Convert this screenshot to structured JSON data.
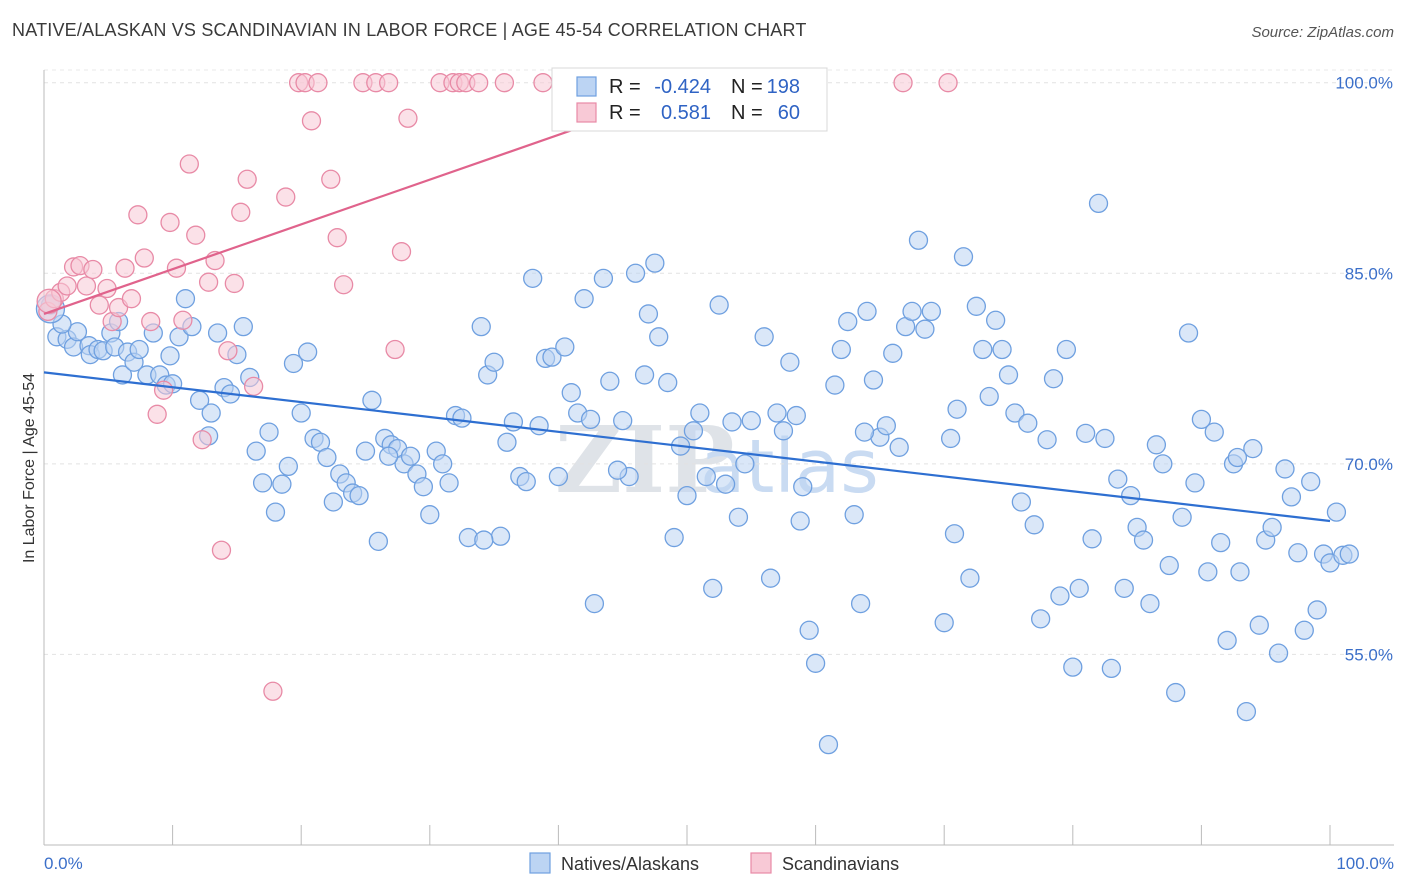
{
  "title": "NATIVE/ALASKAN VS SCANDINAVIAN IN LABOR FORCE | AGE 45-54 CORRELATION CHART",
  "source": "Source: ZipAtlas.com",
  "watermark": {
    "zip": "ZIP",
    "atlas": "atlas"
  },
  "legend_box": {
    "rows": [
      {
        "r_label": "R =",
        "r_value": "-0.424",
        "n_label": "N =",
        "n_value": "198",
        "color": "#a9c8f0"
      },
      {
        "r_label": "R =",
        "r_value": "0.581",
        "n_label": "N =",
        "n_value": "60",
        "color": "#f4b8c9"
      }
    ]
  },
  "bottom_legend": [
    "Natives/Alaskans",
    "Scandinavians"
  ],
  "chart_data": {
    "type": "scatter",
    "title": "NATIVE/ALASKAN VS SCANDINAVIAN IN LABOR FORCE | AGE 45-54 CORRELATION CHART",
    "xlabel": "",
    "ylabel": "In Labor Force | Age 45-54",
    "xlim": [
      0,
      100
    ],
    "ylim": [
      40,
      101
    ],
    "x_tick_labels": [
      "0.0%",
      "100.0%"
    ],
    "y_ticks": [
      55,
      70,
      85,
      100
    ],
    "y_tick_labels": [
      "55.0%",
      "70.0%",
      "85.0%",
      "100.0%"
    ],
    "grid": true,
    "series": [
      {
        "name": "Natives/Alaskans",
        "color": "#6fa0e0",
        "fill": "#bcd4f3",
        "trend": {
          "x": [
            0,
            100
          ],
          "y": [
            77.2,
            65.5
          ],
          "color": "#2e6fd1"
        },
        "points": [
          [
            0.5,
            82.5
          ],
          [
            1.0,
            80.0
          ],
          [
            1.8,
            79.8
          ],
          [
            2.3,
            79.2
          ],
          [
            2.6,
            80.4
          ],
          [
            3.5,
            79.3
          ],
          [
            3.6,
            78.6
          ],
          [
            4.2,
            79.0
          ],
          [
            4.6,
            78.9
          ],
          [
            5.2,
            80.3
          ],
          [
            5.5,
            79.2
          ],
          [
            6.1,
            77.0
          ],
          [
            6.5,
            78.8
          ],
          [
            7.0,
            78.0
          ],
          [
            7.4,
            79.0
          ],
          [
            8.0,
            77.0
          ],
          [
            8.5,
            80.3
          ],
          [
            9.0,
            77.0
          ],
          [
            9.5,
            76.2
          ],
          [
            10.0,
            76.3
          ],
          [
            10.5,
            80.0
          ],
          [
            11.0,
            83.0
          ],
          [
            11.5,
            80.8
          ],
          [
            12.1,
            75.0
          ],
          [
            13.0,
            74.0
          ],
          [
            13.5,
            80.3
          ],
          [
            14.0,
            76.0
          ],
          [
            14.5,
            75.5
          ],
          [
            15.0,
            78.6
          ],
          [
            15.5,
            80.8
          ],
          [
            16.0,
            76.8
          ],
          [
            16.5,
            71.0
          ],
          [
            17.0,
            68.5
          ],
          [
            17.5,
            72.5
          ],
          [
            18.0,
            66.2
          ],
          [
            18.5,
            68.4
          ],
          [
            19.0,
            69.8
          ],
          [
            19.4,
            77.9
          ],
          [
            20.0,
            74.0
          ],
          [
            20.5,
            78.8
          ],
          [
            21.0,
            72.0
          ],
          [
            21.5,
            71.7
          ],
          [
            22.0,
            70.5
          ],
          [
            22.5,
            67.0
          ],
          [
            23.0,
            69.2
          ],
          [
            23.5,
            68.5
          ],
          [
            24.0,
            67.7
          ],
          [
            24.5,
            67.5
          ],
          [
            25.0,
            71.0
          ],
          [
            25.5,
            75.0
          ],
          [
            26.0,
            63.9
          ],
          [
            26.5,
            72.0
          ],
          [
            27.0,
            71.5
          ],
          [
            27.5,
            71.2
          ],
          [
            28.0,
            70.0
          ],
          [
            28.5,
            70.6
          ],
          [
            29.0,
            69.2
          ],
          [
            29.5,
            68.2
          ],
          [
            30.0,
            66.0
          ],
          [
            30.5,
            71.0
          ],
          [
            31.0,
            70.0
          ],
          [
            31.5,
            68.5
          ],
          [
            32.0,
            73.8
          ],
          [
            32.5,
            73.6
          ],
          [
            33.0,
            64.2
          ],
          [
            34.0,
            80.8
          ],
          [
            34.5,
            77.0
          ],
          [
            35.0,
            78.0
          ],
          [
            35.5,
            64.3
          ],
          [
            36.0,
            71.7
          ],
          [
            36.5,
            73.3
          ],
          [
            37.0,
            69.0
          ],
          [
            37.5,
            68.6
          ],
          [
            38.0,
            84.6
          ],
          [
            38.5,
            73.0
          ],
          [
            39.0,
            78.3
          ],
          [
            39.5,
            78.4
          ],
          [
            40.0,
            69.0
          ],
          [
            40.5,
            79.2
          ],
          [
            41.0,
            75.6
          ],
          [
            41.5,
            74.0
          ],
          [
            42.0,
            83.0
          ],
          [
            42.5,
            73.5
          ],
          [
            42.8,
            59.0
          ],
          [
            43.5,
            84.6
          ],
          [
            44.0,
            76.5
          ],
          [
            45.0,
            73.4
          ],
          [
            45.5,
            69.0
          ],
          [
            46.0,
            85.0
          ],
          [
            46.7,
            77.0
          ],
          [
            47.0,
            81.8
          ],
          [
            47.5,
            85.8
          ],
          [
            47.8,
            80.0
          ],
          [
            48.5,
            76.4
          ],
          [
            49.0,
            64.2
          ],
          [
            49.5,
            71.4
          ],
          [
            50.0,
            67.5
          ],
          [
            50.5,
            72.6
          ],
          [
            51.0,
            74.0
          ],
          [
            51.5,
            69.0
          ],
          [
            52.0,
            60.2
          ],
          [
            52.5,
            82.5
          ],
          [
            53.0,
            68.4
          ],
          [
            53.5,
            73.3
          ],
          [
            54.0,
            65.8
          ],
          [
            54.5,
            70.0
          ],
          [
            55.0,
            73.4
          ],
          [
            56.0,
            80.0
          ],
          [
            56.5,
            61.0
          ],
          [
            57.0,
            74.0
          ],
          [
            57.5,
            72.6
          ],
          [
            58.0,
            78.0
          ],
          [
            58.5,
            73.8
          ],
          [
            59.0,
            68.2
          ],
          [
            59.5,
            56.9
          ],
          [
            60.0,
            54.3
          ],
          [
            61.0,
            47.9
          ],
          [
            61.5,
            76.2
          ],
          [
            62.0,
            79.0
          ],
          [
            62.5,
            81.2
          ],
          [
            63.0,
            66.0
          ],
          [
            63.5,
            59.0
          ],
          [
            64.0,
            82.0
          ],
          [
            64.5,
            76.6
          ],
          [
            65.0,
            72.1
          ],
          [
            65.5,
            73.0
          ],
          [
            66.0,
            78.7
          ],
          [
            66.5,
            71.3
          ],
          [
            67.0,
            80.8
          ],
          [
            67.5,
            82.0
          ],
          [
            68.0,
            87.6
          ],
          [
            68.5,
            80.6
          ],
          [
            69.0,
            82.0
          ],
          [
            70.0,
            57.5
          ],
          [
            70.5,
            72.0
          ],
          [
            71.0,
            74.3
          ],
          [
            71.5,
            86.3
          ],
          [
            72.0,
            61.0
          ],
          [
            72.5,
            82.4
          ],
          [
            73.0,
            79.0
          ],
          [
            73.5,
            75.3
          ],
          [
            74.0,
            81.3
          ],
          [
            74.5,
            79.0
          ],
          [
            75.0,
            77.0
          ],
          [
            75.5,
            74.0
          ],
          [
            76.0,
            67.0
          ],
          [
            76.5,
            73.2
          ],
          [
            77.0,
            65.2
          ],
          [
            77.5,
            57.8
          ],
          [
            78.0,
            71.9
          ],
          [
            78.5,
            76.7
          ],
          [
            79.0,
            59.6
          ],
          [
            79.5,
            79.0
          ],
          [
            80.0,
            54.0
          ],
          [
            80.5,
            60.2
          ],
          [
            81.0,
            72.4
          ],
          [
            81.5,
            64.1
          ],
          [
            82.0,
            90.5
          ],
          [
            82.5,
            72.0
          ],
          [
            83.0,
            53.9
          ],
          [
            83.5,
            68.8
          ],
          [
            84.0,
            60.2
          ],
          [
            84.5,
            67.5
          ],
          [
            85.0,
            65.0
          ],
          [
            85.5,
            64.0
          ],
          [
            86.0,
            59.0
          ],
          [
            86.5,
            71.5
          ],
          [
            87.0,
            70.0
          ],
          [
            87.5,
            62.0
          ],
          [
            88.0,
            52.0
          ],
          [
            88.5,
            65.8
          ],
          [
            89.0,
            80.3
          ],
          [
            89.5,
            68.5
          ],
          [
            90.0,
            73.5
          ],
          [
            90.5,
            61.5
          ],
          [
            91.0,
            72.5
          ],
          [
            91.5,
            63.8
          ],
          [
            92.0,
            56.1
          ],
          [
            92.5,
            70.0
          ],
          [
            93.0,
            61.5
          ],
          [
            93.5,
            50.5
          ],
          [
            94.0,
            71.2
          ],
          [
            94.5,
            57.3
          ],
          [
            95.0,
            64.0
          ],
          [
            95.5,
            65.0
          ],
          [
            96.0,
            55.1
          ],
          [
            96.5,
            69.6
          ],
          [
            97.0,
            67.4
          ],
          [
            97.5,
            63.0
          ],
          [
            98.0,
            56.9
          ],
          [
            98.5,
            68.6
          ],
          [
            99.0,
            58.5
          ],
          [
            99.5,
            62.9
          ],
          [
            100.0,
            62.2
          ],
          [
            100.5,
            66.2
          ],
          [
            101.0,
            62.8
          ],
          [
            101.5,
            62.9
          ],
          [
            5.8,
            81.2
          ],
          [
            9.8,
            78.5
          ],
          [
            44.6,
            69.5
          ],
          [
            92.8,
            70.5
          ],
          [
            12.8,
            72.2
          ],
          [
            34.2,
            64.0
          ],
          [
            63.8,
            72.5
          ],
          [
            70.8,
            64.5
          ],
          [
            1.4,
            81.0
          ],
          [
            26.8,
            70.6
          ],
          [
            58.8,
            65.5
          ]
        ]
      },
      {
        "name": "Scandinavians",
        "color": "#e88aa6",
        "fill": "#f8c9d6",
        "trend": {
          "x": [
            0,
            52.5
          ],
          "y": [
            81.8,
            100.3
          ],
          "color": "#e0638c"
        },
        "points": [
          [
            0.3,
            82.0
          ],
          [
            0.8,
            83.0
          ],
          [
            1.3,
            83.5
          ],
          [
            1.8,
            84.0
          ],
          [
            2.3,
            85.5
          ],
          [
            2.8,
            85.6
          ],
          [
            3.3,
            84.0
          ],
          [
            3.8,
            85.3
          ],
          [
            4.3,
            82.5
          ],
          [
            4.9,
            83.8
          ],
          [
            5.3,
            81.2
          ],
          [
            5.8,
            82.3
          ],
          [
            6.3,
            85.4
          ],
          [
            6.8,
            83.0
          ],
          [
            7.3,
            89.6
          ],
          [
            7.8,
            86.2
          ],
          [
            8.3,
            81.2
          ],
          [
            8.8,
            73.9
          ],
          [
            9.3,
            75.8
          ],
          [
            9.8,
            89.0
          ],
          [
            10.3,
            85.4
          ],
          [
            10.8,
            81.3
          ],
          [
            11.3,
            93.6
          ],
          [
            11.8,
            88.0
          ],
          [
            12.3,
            71.9
          ],
          [
            12.8,
            84.3
          ],
          [
            13.3,
            86.0
          ],
          [
            13.8,
            63.2
          ],
          [
            14.3,
            78.9
          ],
          [
            14.8,
            84.2
          ],
          [
            15.3,
            89.8
          ],
          [
            15.8,
            92.4
          ],
          [
            16.3,
            76.1
          ],
          [
            17.8,
            52.1
          ],
          [
            18.8,
            91.0
          ],
          [
            19.8,
            100.0
          ],
          [
            20.3,
            100.0
          ],
          [
            20.8,
            97.0
          ],
          [
            21.3,
            100.0
          ],
          [
            22.3,
            92.4
          ],
          [
            22.8,
            87.8
          ],
          [
            23.3,
            84.1
          ],
          [
            24.8,
            100.0
          ],
          [
            25.8,
            100.0
          ],
          [
            26.8,
            100.0
          ],
          [
            27.3,
            79.0
          ],
          [
            27.8,
            86.7
          ],
          [
            28.3,
            97.2
          ],
          [
            30.8,
            100.0
          ],
          [
            31.8,
            100.0
          ],
          [
            32.3,
            100.0
          ],
          [
            32.8,
            100.0
          ],
          [
            33.8,
            100.0
          ],
          [
            35.8,
            100.0
          ],
          [
            38.8,
            100.0
          ],
          [
            41.8,
            100.0
          ],
          [
            45.8,
            100.0
          ],
          [
            51.8,
            100.0
          ],
          [
            66.8,
            100.0
          ],
          [
            70.3,
            100.0
          ]
        ]
      }
    ]
  }
}
